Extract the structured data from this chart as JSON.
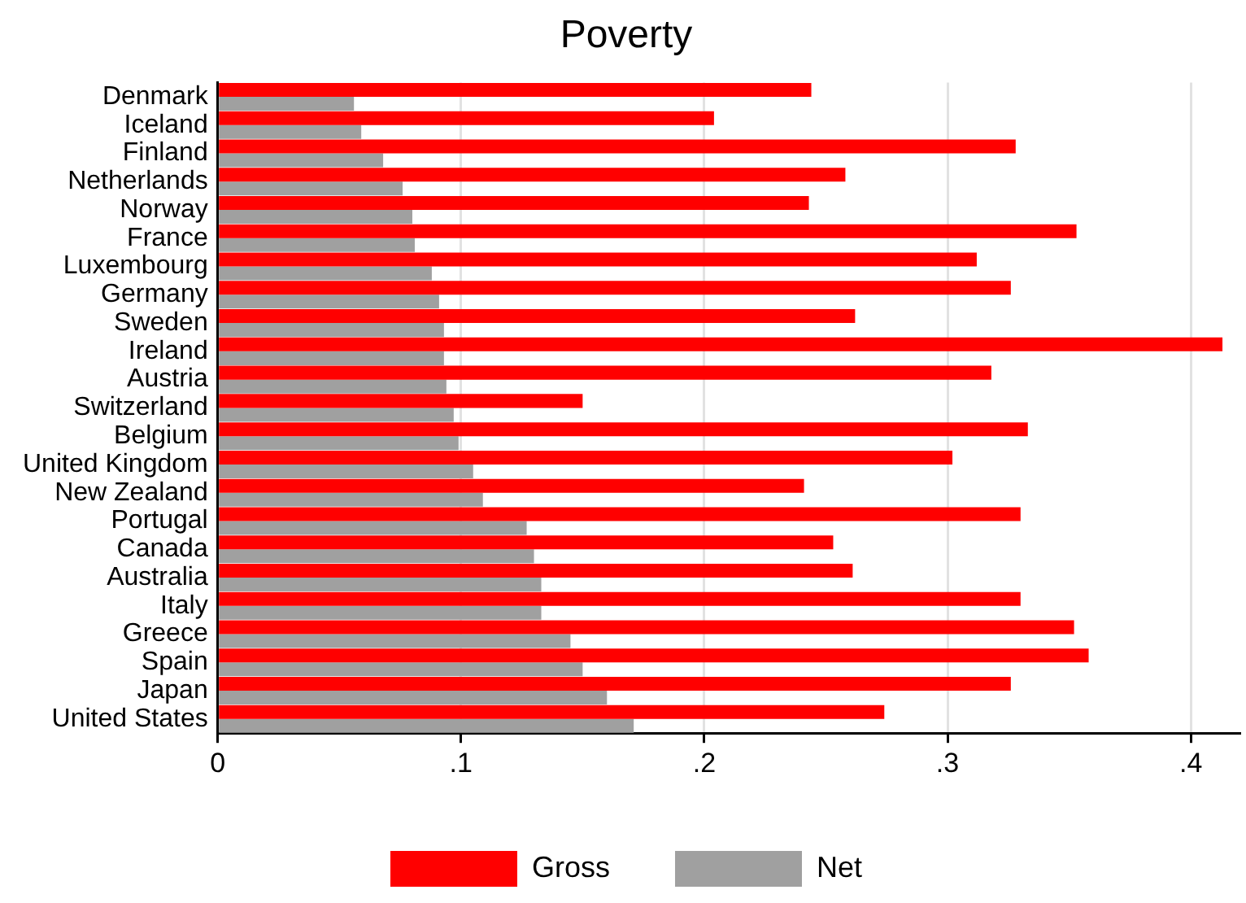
{
  "chart_data": {
    "type": "bar",
    "orientation": "horizontal",
    "title": "Poverty",
    "categories": [
      "Denmark",
      "Iceland",
      "Finland",
      "Netherlands",
      "Norway",
      "France",
      "Luxembourg",
      "Germany",
      "Sweden",
      "Ireland",
      "Austria",
      "Switzerland",
      "Belgium",
      "United Kingdom",
      "New Zealand",
      "Portugal",
      "Canada",
      "Australia",
      "Italy",
      "Greece",
      "Spain",
      "Japan",
      "United States"
    ],
    "series": [
      {
        "name": "Gross",
        "color": "#ff0000",
        "values": [
          0.244,
          0.204,
          0.328,
          0.258,
          0.243,
          0.353,
          0.312,
          0.326,
          0.262,
          0.413,
          0.318,
          0.15,
          0.333,
          0.302,
          0.241,
          0.33,
          0.253,
          0.261,
          0.33,
          0.352,
          0.358,
          0.326,
          0.274
        ]
      },
      {
        "name": "Net",
        "color": "#a0a0a0",
        "values": [
          0.056,
          0.059,
          0.068,
          0.076,
          0.08,
          0.081,
          0.088,
          0.091,
          0.093,
          0.093,
          0.094,
          0.097,
          0.099,
          0.105,
          0.109,
          0.127,
          0.13,
          0.133,
          0.133,
          0.145,
          0.15,
          0.16,
          0.171
        ]
      }
    ],
    "xlim": [
      0,
      0.42
    ],
    "xticks": [
      0,
      {
        "value": 0.1,
        "label": ".1"
      },
      {
        "value": 0.2,
        "label": ".2"
      },
      {
        "value": 0.3,
        "label": ".3"
      },
      {
        "value": 0.4,
        "label": ".4"
      }
    ],
    "grid": "x",
    "legend": "bottom"
  }
}
